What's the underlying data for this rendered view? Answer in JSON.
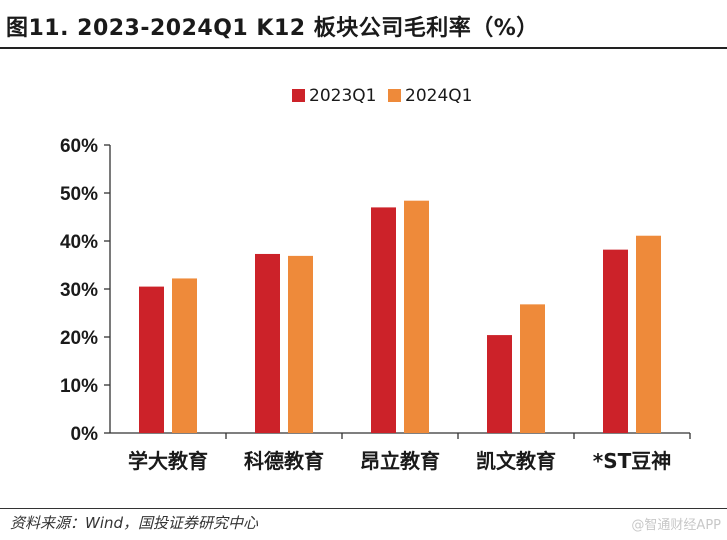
{
  "figure_title": "图11. 2023-2024Q1 K12 板块公司毛利率（%）",
  "source_note": "资料来源：Wind，国投证券研究中心",
  "watermark": "@智通财经APP",
  "colors": {
    "series_2023Q1": "#cc2229",
    "series_2024Q1": "#ee8a3a",
    "axis": "#333333"
  },
  "chart_data": {
    "type": "bar",
    "categories": [
      "学大教育",
      "科德教育",
      "昂立教育",
      "凯文教育",
      "*ST豆神"
    ],
    "series": [
      {
        "name": "2023Q1",
        "values": [
          30.5,
          37.3,
          47.0,
          20.4,
          38.2
        ]
      },
      {
        "name": "2024Q1",
        "values": [
          32.2,
          36.9,
          48.4,
          26.8,
          41.1
        ]
      }
    ],
    "ylim": [
      0,
      60
    ],
    "y_ticks": [
      0,
      10,
      20,
      30,
      40,
      50,
      60
    ],
    "y_tick_labels": [
      "0%",
      "10%",
      "20%",
      "30%",
      "40%",
      "50%",
      "60%"
    ],
    "legend_position": "top-center",
    "grid": false
  }
}
